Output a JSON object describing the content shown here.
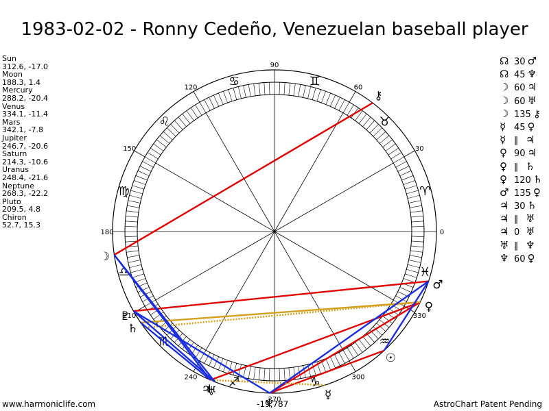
{
  "page": {
    "title": "1983-02-02 - Ronny Cedeño, Venezuelan baseball player",
    "footer_left": "www.harmoniclife.com",
    "footer_right": "AstroChart Patent Pending",
    "footer_center": "-19,787"
  },
  "positions": [
    {
      "name": "Sun",
      "value": "312.6, -17.0"
    },
    {
      "name": "Moon",
      "value": "188.3, 1.4"
    },
    {
      "name": "Mercury",
      "value": "288.2, -20.4"
    },
    {
      "name": "Venus",
      "value": "334.1, -11.4"
    },
    {
      "name": "Mars",
      "value": "342.1, -7.8"
    },
    {
      "name": "Jupiter",
      "value": "246.7, -20.6"
    },
    {
      "name": "Saturn",
      "value": "214.3, -10.6"
    },
    {
      "name": "Uranus",
      "value": "248.4, -21.6"
    },
    {
      "name": "Neptune",
      "value": "268.3, -22.2"
    },
    {
      "name": "Pluto",
      "value": "209.5, 4.8"
    },
    {
      "name": "Chiron",
      "value": "52.7, 15.3"
    }
  ],
  "aspects": [
    {
      "p1": "☊",
      "aspect": "30",
      "p2": "♂"
    },
    {
      "p1": "☊",
      "aspect": "45",
      "p2": "♆"
    },
    {
      "p1": "☽",
      "aspect": "60",
      "p2": "♃"
    },
    {
      "p1": "☽",
      "aspect": "60",
      "p2": "♅"
    },
    {
      "p1": "☽",
      "aspect": "135",
      "p2": "⚷"
    },
    {
      "p1": "☿",
      "aspect": "45",
      "p2": "♀"
    },
    {
      "p1": "☿",
      "aspect": "∥",
      "p2": "♃"
    },
    {
      "p1": "♀",
      "aspect": "90",
      "p2": "♃"
    },
    {
      "p1": "♀",
      "aspect": "∥",
      "p2": "♄"
    },
    {
      "p1": "♀",
      "aspect": "120",
      "p2": "♄"
    },
    {
      "p1": "♂",
      "aspect": "135",
      "p2": "♀"
    },
    {
      "p1": "♃",
      "aspect": "30",
      "p2": "♄"
    },
    {
      "p1": "♃",
      "aspect": "∥",
      "p2": "♅"
    },
    {
      "p1": "♃",
      "aspect": "0",
      "p2": "♅"
    },
    {
      "p1": "♅",
      "aspect": "∥",
      "p2": "♆"
    },
    {
      "p1": "♆",
      "aspect": "60",
      "p2": "♀"
    }
  ],
  "chart_data": {
    "type": "astrological-wheel",
    "degree_labels": [
      "0",
      "30",
      "60",
      "90",
      "120",
      "150",
      "180",
      "210",
      "240",
      "270",
      "300",
      "330"
    ],
    "zodiac_signs": [
      {
        "glyph": "♈",
        "start": 0
      },
      {
        "glyph": "♉",
        "start": 30
      },
      {
        "glyph": "♊",
        "start": 60
      },
      {
        "glyph": "♋",
        "start": 90
      },
      {
        "glyph": "♌",
        "start": 120
      },
      {
        "glyph": "♍",
        "start": 150
      },
      {
        "glyph": "♎",
        "start": 180
      },
      {
        "glyph": "♏",
        "start": 210
      },
      {
        "glyph": "♐",
        "start": 240
      },
      {
        "glyph": "♑",
        "start": 270
      },
      {
        "glyph": "♒",
        "start": 300
      },
      {
        "glyph": "♓",
        "start": 330
      }
    ],
    "planets": [
      {
        "glyph": "☉",
        "longitude": 312.6
      },
      {
        "glyph": "☽",
        "longitude": 188.3
      },
      {
        "glyph": "☿",
        "longitude": 288.2
      },
      {
        "glyph": "♀",
        "longitude": 334.1
      },
      {
        "glyph": "♂",
        "longitude": 342.1
      },
      {
        "glyph": "♃",
        "longitude": 246.7
      },
      {
        "glyph": "♄",
        "longitude": 214.3
      },
      {
        "glyph": "♅",
        "longitude": 248.4
      },
      {
        "glyph": "♆",
        "longitude": 268.3
      },
      {
        "glyph": "♇",
        "longitude": 209.5
      },
      {
        "glyph": "⚷",
        "longitude": 52.7
      }
    ],
    "aspect_lines": [
      {
        "from": 52.7,
        "to": 188.3,
        "color": "#e00000",
        "style": "solid"
      },
      {
        "from": 342.1,
        "to": 209.5,
        "color": "#e00000",
        "style": "solid"
      },
      {
        "from": 334.1,
        "to": 246.7,
        "color": "#e00000",
        "style": "solid"
      },
      {
        "from": 334.1,
        "to": 268.3,
        "color": "#e00000",
        "style": "solid"
      },
      {
        "from": 312.6,
        "to": 268.3,
        "color": "#e00000",
        "style": "solid"
      },
      {
        "from": 334.1,
        "to": 214.3,
        "color": "#d4a020",
        "style": "solid"
      },
      {
        "from": 334.1,
        "to": 216.5,
        "color": "#d4a020",
        "style": "dotted"
      },
      {
        "from": 288.2,
        "to": 246.7,
        "color": "#d4a020",
        "style": "dotted"
      },
      {
        "from": 188.3,
        "to": 246.7,
        "color": "#1a2ee0",
        "style": "solid"
      },
      {
        "from": 188.3,
        "to": 248.4,
        "color": "#1a2ee0",
        "style": "solid"
      },
      {
        "from": 209.5,
        "to": 248.4,
        "color": "#1a2ee0",
        "style": "solid"
      },
      {
        "from": 214.3,
        "to": 246.7,
        "color": "#1a2ee0",
        "style": "solid"
      },
      {
        "from": 209.5,
        "to": 268.3,
        "color": "#1a2ee0",
        "style": "solid"
      },
      {
        "from": 342.1,
        "to": 312.6,
        "color": "#1a2ee0",
        "style": "solid"
      },
      {
        "from": 342.1,
        "to": 268.3,
        "color": "#1a2ee0",
        "style": "solid"
      }
    ]
  }
}
